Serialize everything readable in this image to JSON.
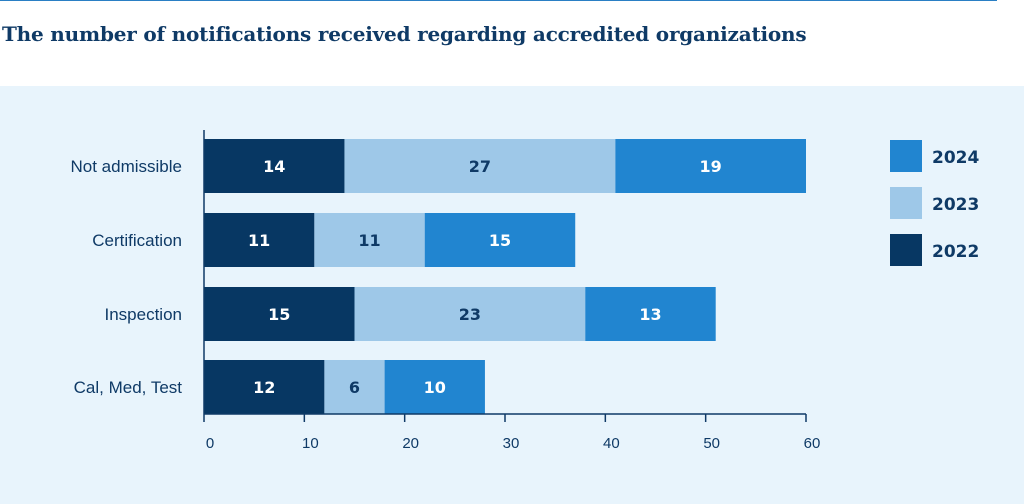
{
  "title": "The number of notifications received regarding accredited organizations",
  "colors": {
    "2022": "#073763",
    "2023": "#9ec8e8",
    "2024": "#2185d0",
    "text_dark": "#0f3a66",
    "text_light": "#ffffff"
  },
  "chart_data": {
    "type": "bar",
    "orientation": "horizontal",
    "stacked": true,
    "title": "The number of notifications received regarding accredited organizations",
    "categories": [
      "Not admissible",
      "Certification",
      "Inspection",
      "Cal, Med, Test"
    ],
    "series": [
      {
        "name": "2022",
        "values": [
          14,
          11,
          15,
          12
        ]
      },
      {
        "name": "2023",
        "values": [
          27,
          11,
          23,
          6
        ]
      },
      {
        "name": "2024",
        "values": [
          19,
          15,
          13,
          10
        ]
      }
    ],
    "xlim": [
      0,
      60
    ],
    "xticks": [
      0,
      10,
      20,
      30,
      40,
      50,
      60
    ],
    "legend": {
      "placement": "right",
      "order": [
        "2024",
        "2023",
        "2022"
      ]
    },
    "grid": false
  }
}
